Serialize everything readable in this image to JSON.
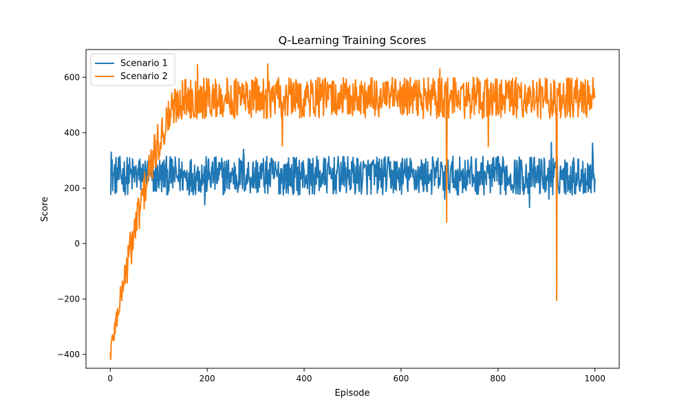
{
  "chart_data": {
    "type": "line",
    "title": "Q-Learning Training Scores",
    "xlabel": "Episode",
    "ylabel": "Score",
    "xlim": [
      -50,
      1050
    ],
    "ylim": [
      -450,
      700
    ],
    "xticks": [
      0,
      200,
      400,
      600,
      800,
      1000
    ],
    "yticks": [
      -400,
      -200,
      0,
      200,
      400,
      600
    ],
    "grid": false,
    "legend_position": "top-left",
    "series": [
      {
        "name": "Scenario 1",
        "color": "#1f77b4",
        "mean": 245,
        "noise_range": [
          -70,
          70
        ],
        "spikes": [
          {
            "x": 2,
            "y": 330
          },
          {
            "x": 275,
            "y": 340
          },
          {
            "x": 910,
            "y": 365
          },
          {
            "x": 995,
            "y": 362
          },
          {
            "x": 195,
            "y": 140
          },
          {
            "x": 865,
            "y": 130
          },
          {
            "x": 690,
            "y": 160
          },
          {
            "x": 905,
            "y": 160
          }
        ]
      },
      {
        "name": "Scenario 2",
        "color": "#ff7f0e",
        "start": -400,
        "plateau": 520,
        "ramp_end_episode": 150,
        "noise_range": [
          -70,
          80
        ],
        "spikes": [
          {
            "x": 325,
            "y": 648
          },
          {
            "x": 180,
            "y": 645
          },
          {
            "x": 355,
            "y": 352
          },
          {
            "x": 694,
            "y": 77
          },
          {
            "x": 921,
            "y": -205
          },
          {
            "x": 780,
            "y": 350
          },
          {
            "x": 680,
            "y": 630
          }
        ]
      }
    ]
  }
}
